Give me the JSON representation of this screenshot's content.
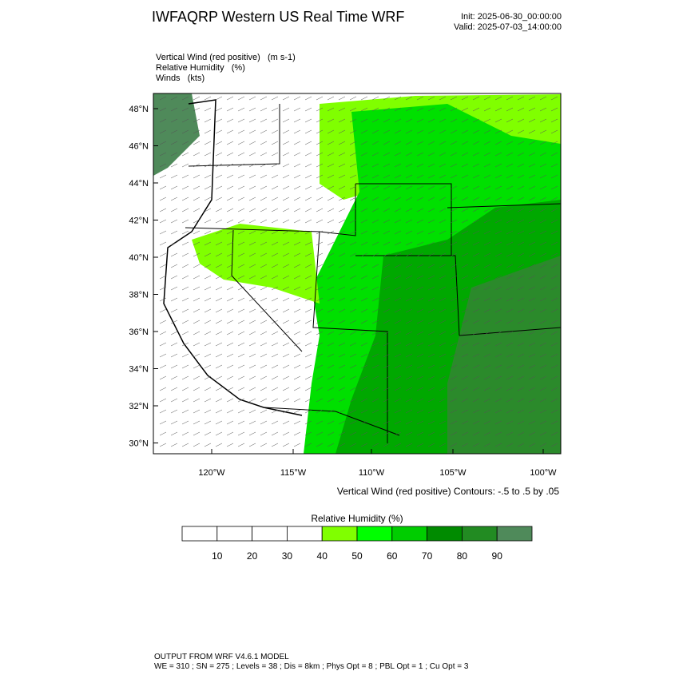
{
  "header": {
    "title": "IWFAQRP Western US Real Time WRF",
    "init": "Init: 2025-06-30_00:00:00",
    "valid": "Valid: 2025-07-03_14:00:00"
  },
  "fields": [
    "Vertical Wind (red positive)   (m s-1)",
    "Relative Humidity   (%)",
    "Winds   (kts)"
  ],
  "map": {
    "lat_labels": [
      "48°N",
      "46°N",
      "44°N",
      "42°N",
      "40°N",
      "38°N",
      "36°N",
      "34°N",
      "32°N",
      "30°N"
    ],
    "lon_labels": [
      "120°W",
      "115°W",
      "110°W",
      "105°W",
      "100°W"
    ],
    "contour_note": "Vertical Wind (red positive) Contours: -.5 to .5 by .05"
  },
  "colorbar": {
    "title": "Relative Humidity  (%)",
    "labels": [
      "10",
      "20",
      "30",
      "40",
      "50",
      "60",
      "70",
      "80",
      "90"
    ],
    "colors": [
      "#ffffff",
      "#ffffff",
      "#ffffff",
      "#ffffff",
      "#80ff00",
      "#00ff00",
      "#00cd00",
      "#008b00",
      "#228b22",
      "#4f8a5a"
    ]
  },
  "footer": {
    "line1": "OUTPUT FROM WRF V4.6.1 MODEL",
    "line2": "WE = 310 ; SN = 275 ; Levels = 38 ; Dis = 8km ; Phys Opt = 8 ; PBL Opt = 1 ; Cu Opt = 3"
  }
}
